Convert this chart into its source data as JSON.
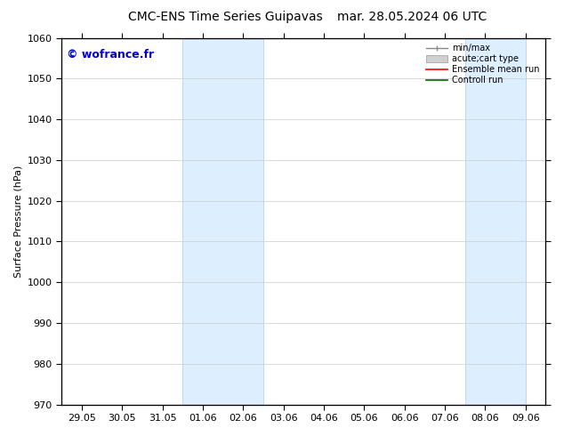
{
  "title": "CMC-ENS Time Series Guipavas",
  "title_right": "mar. 28.05.2024 06 UTC",
  "ylabel": "Surface Pressure (hPa)",
  "ylim": [
    970,
    1060
  ],
  "yticks": [
    970,
    980,
    990,
    1000,
    1010,
    1020,
    1030,
    1040,
    1050,
    1060
  ],
  "xtick_labels": [
    "29.05",
    "30.05",
    "31.05",
    "01.06",
    "02.06",
    "03.06",
    "04.06",
    "05.06",
    "06.06",
    "07.06",
    "08.06",
    "09.06"
  ],
  "xtick_positions": [
    0,
    1,
    2,
    3,
    4,
    5,
    6,
    7,
    8,
    9,
    10,
    11
  ],
  "shaded_regions": [
    {
      "xmin": 3.0,
      "xmax": 5.0,
      "color": "#ddeeff"
    },
    {
      "xmin": 10.0,
      "xmax": 11.5,
      "color": "#ddeeff"
    }
  ],
  "watermark": "© wofrance.fr",
  "watermark_color": "#0000cc",
  "background_color": "#ffffff",
  "grid_color": "#cccccc",
  "font_size": 8,
  "title_fontsize": 10,
  "legend_font_size": 7
}
